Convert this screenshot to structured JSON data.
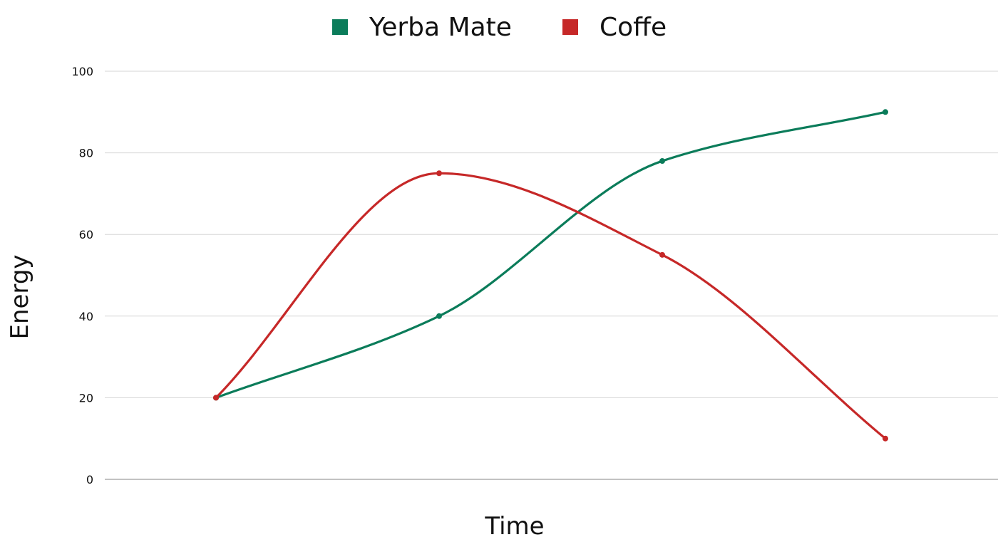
{
  "chart_data": {
    "type": "line",
    "categories": [
      "",
      "",
      "",
      ""
    ],
    "series": [
      {
        "name": "Yerba Mate",
        "color": "#0b7c5a",
        "values": [
          20,
          40,
          78,
          90
        ]
      },
      {
        "name": "Coffe",
        "color": "#c62828",
        "values": [
          20,
          75,
          55,
          10
        ]
      }
    ],
    "title": "",
    "xlabel": "Time",
    "ylabel": "Energy",
    "ylim": [
      0,
      100
    ],
    "yticks": [
      0,
      20,
      40,
      60,
      80,
      100
    ],
    "grid": true,
    "smooth": true,
    "markers": true,
    "legend_position": "top-center"
  }
}
